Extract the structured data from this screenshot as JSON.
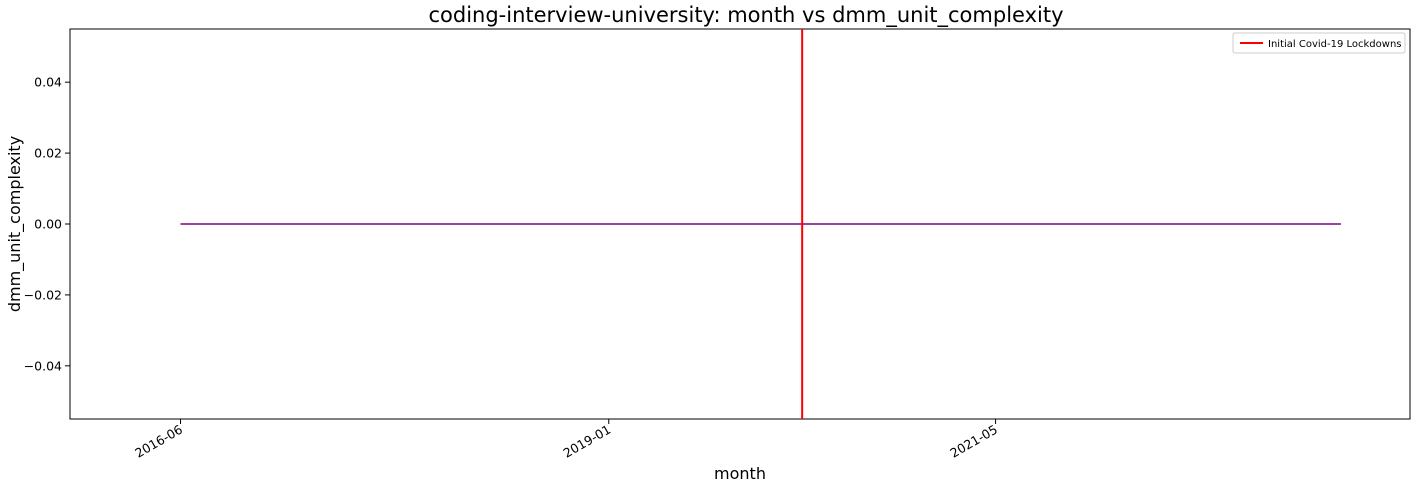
{
  "chart_data": {
    "type": "line",
    "title": "coding-interview-university: month vs dmm_unit_complexity",
    "xlabel": "month",
    "ylabel": "dmm_unit_complexity",
    "x_range": [
      "2016-06",
      "2023-06"
    ],
    "xlim": [
      "2015-10",
      "2023-11"
    ],
    "ylim": [
      -0.055,
      0.055
    ],
    "x_ticks": [
      "2016-06",
      "2019-01",
      "2021-05"
    ],
    "y_ticks": [
      0.04,
      0.02,
      0.0,
      -0.02,
      -0.04
    ],
    "y_tick_labels": [
      "0.04",
      "0.02",
      "0.00",
      "−0.02",
      "−0.04"
    ],
    "grid": false,
    "series": [
      {
        "color": "#800080",
        "points": [
          {
            "x": "2016-06",
            "y": 0.0
          },
          {
            "x": "2023-06",
            "y": 0.0
          }
        ]
      }
    ],
    "annotations": [
      {
        "type": "vertical-line",
        "x": "2020-03",
        "label": "Initial Covid-19 Lockdowns",
        "color": "#ff0000"
      }
    ],
    "legend": {
      "placement": "top-right",
      "entries": [
        {
          "label": "Initial Covid-19 Lockdowns",
          "color": "#ff0000"
        }
      ]
    }
  }
}
